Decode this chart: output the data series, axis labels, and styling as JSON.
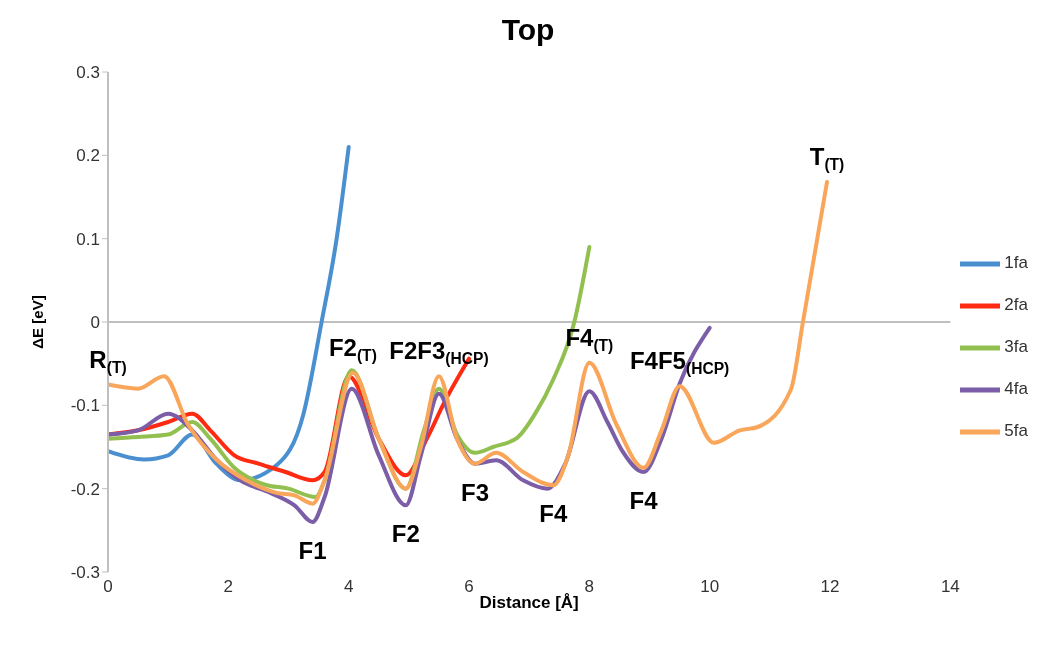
{
  "chart_data": {
    "type": "line",
    "title": "Top",
    "xlabel": "Distance [Å]",
    "ylabel": "ΔE [eV]",
    "xlim": [
      0,
      14
    ],
    "xticks": [
      0,
      2,
      4,
      6,
      8,
      10,
      12,
      14
    ],
    "ylim": [
      -0.3,
      0.3
    ],
    "yticks": [
      -0.3,
      -0.2,
      -0.1,
      0,
      0.1,
      0.2,
      0.3
    ],
    "grid": false,
    "legend": "right",
    "marker": "none",
    "line_style": "solid",
    "ref_lines": [
      {
        "axis": "y",
        "value": 0,
        "color": "#bfbfbf"
      }
    ],
    "series": [
      {
        "name": "1fa",
        "color": "#4a90d0",
        "x": [
          0,
          0.6,
          1,
          1.4,
          1.8,
          2.2,
          2.8,
          3.25,
          3.55,
          3.8,
          4.0
        ],
        "values": [
          -0.155,
          -0.165,
          -0.16,
          -0.135,
          -0.17,
          -0.19,
          -0.172,
          -0.11,
          0,
          0.1,
          0.21
        ]
      },
      {
        "name": "2fa",
        "color": "#ff2a12",
        "x": [
          0,
          0.5,
          1,
          1.4,
          1.7,
          2.1,
          2.5,
          2.95,
          3.4,
          3.6,
          4.0,
          4.5,
          4.95,
          5.3,
          5.6,
          6.0
        ],
        "values": [
          -0.135,
          -0.13,
          -0.12,
          -0.11,
          -0.13,
          -0.16,
          -0.17,
          -0.18,
          -0.19,
          -0.18,
          -0.065,
          -0.14,
          -0.184,
          -0.14,
          -0.095,
          -0.044
        ]
      },
      {
        "name": "3fa",
        "color": "#92c050",
        "x": [
          0,
          0.5,
          1,
          1.4,
          1.7,
          2.1,
          2.6,
          3.0,
          3.45,
          3.6,
          4.05,
          4.5,
          4.95,
          5.25,
          5.5,
          5.8,
          6.1,
          6.4,
          6.8,
          7.1,
          7.4,
          7.75,
          8.0
        ],
        "values": [
          -0.14,
          -0.138,
          -0.135,
          -0.12,
          -0.14,
          -0.175,
          -0.195,
          -0.2,
          -0.21,
          -0.19,
          -0.058,
          -0.14,
          -0.2,
          -0.13,
          -0.08,
          -0.135,
          -0.157,
          -0.15,
          -0.139,
          -0.11,
          -0.069,
          0,
          0.09
        ]
      },
      {
        "name": "4fa",
        "color": "#7b5ea7",
        "x": [
          0,
          0.5,
          1,
          1.4,
          1.8,
          2.2,
          2.7,
          3.1,
          3.4,
          3.6,
          4.05,
          4.5,
          4.95,
          5.2,
          5.5,
          5.8,
          6.1,
          6.45,
          6.9,
          7.3,
          7.6,
          8.0,
          8.3,
          8.55,
          8.9,
          9.2,
          9.5,
          10.0
        ],
        "values": [
          -0.135,
          -0.13,
          -0.11,
          -0.13,
          -0.165,
          -0.19,
          -0.205,
          -0.22,
          -0.24,
          -0.21,
          -0.08,
          -0.16,
          -0.22,
          -0.16,
          -0.086,
          -0.14,
          -0.17,
          -0.166,
          -0.19,
          -0.2,
          -0.17,
          -0.083,
          -0.12,
          -0.155,
          -0.18,
          -0.14,
          -0.074,
          -0.007
        ]
      },
      {
        "name": "5fa",
        "color": "#f9a65a",
        "x": [
          0,
          0.5,
          0.93,
          1.33,
          1.8,
          2.3,
          2.8,
          3.1,
          3.4,
          3.6,
          4.07,
          4.5,
          4.95,
          5.2,
          5.5,
          5.8,
          6.1,
          6.45,
          6.9,
          7.4,
          7.65,
          8.0,
          8.45,
          8.9,
          9.2,
          9.5,
          10.07,
          10.5,
          10.8,
          11.35,
          11.55,
          11.95
        ],
        "values": [
          -0.075,
          -0.08,
          -0.065,
          -0.123,
          -0.165,
          -0.19,
          -0.205,
          -0.208,
          -0.218,
          -0.19,
          -0.061,
          -0.14,
          -0.2,
          -0.15,
          -0.065,
          -0.14,
          -0.17,
          -0.157,
          -0.18,
          -0.196,
          -0.16,
          -0.049,
          -0.123,
          -0.175,
          -0.13,
          -0.077,
          -0.145,
          -0.13,
          -0.126,
          -0.081,
          0,
          0.168
        ]
      }
    ],
    "annotations": [
      {
        "text": "R$_{(T)}$",
        "x": 0,
        "y": -0.075
      },
      {
        "text": "F2$_{(T)}$",
        "x": 4.07,
        "y": -0.061
      },
      {
        "text": "F2F3$_{(HCP)}$",
        "x": 5.5,
        "y": -0.065
      },
      {
        "text": "F4$_{(T)}$",
        "x": 8.0,
        "y": -0.049
      },
      {
        "text": "F4F5$_{(HCP)}$",
        "x": 9.5,
        "y": -0.077
      },
      {
        "text": "T$_{(T)}$",
        "x": 11.95,
        "y": 0.168
      },
      {
        "text": "F1",
        "x": 3.4,
        "y": -0.24
      },
      {
        "text": "F2",
        "x": 4.95,
        "y": -0.22
      },
      {
        "text": "F3",
        "x": 6.1,
        "y": -0.17
      },
      {
        "text": "F4",
        "x": 7.4,
        "y": -0.196
      },
      {
        "text": "F4",
        "x": 8.9,
        "y": -0.18
      }
    ]
  }
}
